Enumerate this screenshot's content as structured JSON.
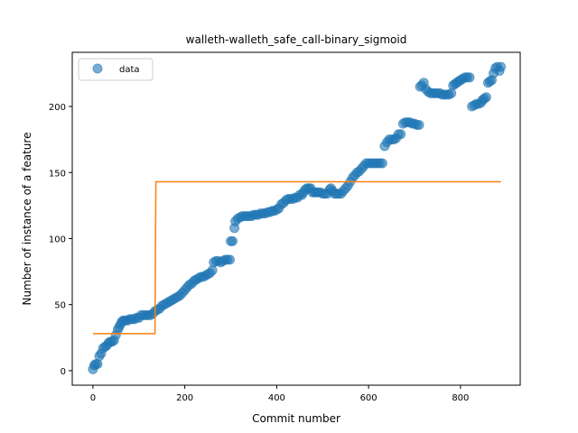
{
  "chart_data": {
    "type": "scatter",
    "title": "walleth-walleth_safe_call-binary_sigmoid",
    "xlabel": "Commit number",
    "ylabel": "Number of instance of a feature",
    "xlim": [
      -45,
      930
    ],
    "ylim": [
      -11,
      241
    ],
    "xticks": [
      0,
      200,
      400,
      600,
      800
    ],
    "yticks": [
      0,
      50,
      100,
      150,
      200
    ],
    "grid": false,
    "legend": {
      "placement": "top-left",
      "entries": [
        "data"
      ]
    },
    "series": [
      {
        "name": "data",
        "kind": "scatter",
        "color": "#1f77b4",
        "points": [
          [
            0,
            1
          ],
          [
            3,
            4
          ],
          [
            6,
            5
          ],
          [
            10,
            5
          ],
          [
            14,
            11
          ],
          [
            18,
            13
          ],
          [
            22,
            17
          ],
          [
            26,
            18
          ],
          [
            30,
            19
          ],
          [
            34,
            21
          ],
          [
            38,
            22
          ],
          [
            42,
            22
          ],
          [
            46,
            23
          ],
          [
            50,
            27
          ],
          [
            54,
            31
          ],
          [
            57,
            33
          ],
          [
            60,
            35
          ],
          [
            63,
            37
          ],
          [
            66,
            38
          ],
          [
            70,
            38
          ],
          [
            75,
            38
          ],
          [
            80,
            39
          ],
          [
            85,
            39
          ],
          [
            90,
            39
          ],
          [
            95,
            40
          ],
          [
            100,
            40
          ],
          [
            105,
            42
          ],
          [
            110,
            42
          ],
          [
            115,
            42
          ],
          [
            120,
            42
          ],
          [
            125,
            42
          ],
          [
            130,
            43
          ],
          [
            135,
            45
          ],
          [
            140,
            46
          ],
          [
            145,
            47
          ],
          [
            150,
            49
          ],
          [
            155,
            50
          ],
          [
            160,
            51
          ],
          [
            165,
            52
          ],
          [
            170,
            53
          ],
          [
            175,
            54
          ],
          [
            180,
            55
          ],
          [
            185,
            56
          ],
          [
            190,
            57
          ],
          [
            195,
            59
          ],
          [
            200,
            61
          ],
          [
            205,
            63
          ],
          [
            210,
            65
          ],
          [
            215,
            66
          ],
          [
            220,
            68
          ],
          [
            225,
            69
          ],
          [
            230,
            70
          ],
          [
            235,
            71
          ],
          [
            240,
            71
          ],
          [
            245,
            72
          ],
          [
            250,
            73
          ],
          [
            255,
            74
          ],
          [
            260,
            76
          ],
          [
            263,
            82
          ],
          [
            268,
            83
          ],
          [
            273,
            83
          ],
          [
            278,
            82
          ],
          [
            283,
            83
          ],
          [
            288,
            84
          ],
          [
            293,
            84
          ],
          [
            298,
            84
          ],
          [
            300,
            98
          ],
          [
            304,
            98
          ],
          [
            308,
            108
          ],
          [
            310,
            113
          ],
          [
            315,
            115
          ],
          [
            320,
            116
          ],
          [
            325,
            117
          ],
          [
            330,
            117
          ],
          [
            335,
            117
          ],
          [
            340,
            117
          ],
          [
            345,
            117
          ],
          [
            350,
            118
          ],
          [
            355,
            118
          ],
          [
            360,
            118
          ],
          [
            365,
            119
          ],
          [
            370,
            119
          ],
          [
            375,
            119
          ],
          [
            380,
            120
          ],
          [
            385,
            120
          ],
          [
            390,
            121
          ],
          [
            395,
            121
          ],
          [
            400,
            122
          ],
          [
            405,
            123
          ],
          [
            410,
            126
          ],
          [
            415,
            127
          ],
          [
            420,
            129
          ],
          [
            425,
            130
          ],
          [
            430,
            130
          ],
          [
            435,
            130
          ],
          [
            440,
            131
          ],
          [
            445,
            131
          ],
          [
            450,
            133
          ],
          [
            455,
            133
          ],
          [
            458,
            135
          ],
          [
            462,
            137
          ],
          [
            466,
            138
          ],
          [
            470,
            138
          ],
          [
            474,
            138
          ],
          [
            478,
            135
          ],
          [
            482,
            135
          ],
          [
            486,
            135
          ],
          [
            490,
            135
          ],
          [
            495,
            135
          ],
          [
            500,
            134
          ],
          [
            505,
            134
          ],
          [
            510,
            134
          ],
          [
            515,
            137
          ],
          [
            518,
            138
          ],
          [
            522,
            136
          ],
          [
            526,
            134
          ],
          [
            530,
            134
          ],
          [
            535,
            134
          ],
          [
            540,
            134
          ],
          [
            545,
            136
          ],
          [
            550,
            138
          ],
          [
            555,
            140
          ],
          [
            560,
            143
          ],
          [
            565,
            146
          ],
          [
            570,
            148
          ],
          [
            575,
            150
          ],
          [
            580,
            151
          ],
          [
            585,
            153
          ],
          [
            590,
            155
          ],
          [
            595,
            157
          ],
          [
            600,
            157
          ],
          [
            605,
            157
          ],
          [
            610,
            157
          ],
          [
            615,
            157
          ],
          [
            620,
            157
          ],
          [
            625,
            157
          ],
          [
            630,
            157
          ],
          [
            635,
            170
          ],
          [
            640,
            173
          ],
          [
            645,
            175
          ],
          [
            650,
            175
          ],
          [
            655,
            175
          ],
          [
            660,
            176
          ],
          [
            665,
            179
          ],
          [
            670,
            179
          ],
          [
            675,
            187
          ],
          [
            680,
            188
          ],
          [
            685,
            188
          ],
          [
            690,
            188
          ],
          [
            695,
            187
          ],
          [
            700,
            187
          ],
          [
            705,
            186
          ],
          [
            710,
            186
          ],
          [
            712,
            215
          ],
          [
            716,
            216
          ],
          [
            720,
            218
          ],
          [
            725,
            213
          ],
          [
            730,
            211
          ],
          [
            735,
            210
          ],
          [
            740,
            210
          ],
          [
            745,
            210
          ],
          [
            750,
            210
          ],
          [
            755,
            210
          ],
          [
            760,
            209
          ],
          [
            765,
            209
          ],
          [
            770,
            209
          ],
          [
            775,
            209
          ],
          [
            780,
            210
          ],
          [
            784,
            216
          ],
          [
            788,
            217
          ],
          [
            792,
            218
          ],
          [
            796,
            219
          ],
          [
            800,
            220
          ],
          [
            805,
            221
          ],
          [
            810,
            222
          ],
          [
            815,
            222
          ],
          [
            820,
            222
          ],
          [
            825,
            200
          ],
          [
            830,
            201
          ],
          [
            835,
            202
          ],
          [
            840,
            202
          ],
          [
            845,
            203
          ],
          [
            848,
            205
          ],
          [
            852,
            206
          ],
          [
            856,
            207
          ],
          [
            860,
            218
          ],
          [
            864,
            219
          ],
          [
            868,
            220
          ],
          [
            872,
            225
          ],
          [
            876,
            229
          ],
          [
            880,
            230
          ],
          [
            885,
            227
          ],
          [
            888,
            230
          ]
        ]
      },
      {
        "name": "",
        "kind": "line",
        "color": "#ff7f0e",
        "points": [
          [
            0,
            28
          ],
          [
            135,
            28
          ],
          [
            137,
            143
          ],
          [
            888,
            143
          ]
        ]
      }
    ]
  }
}
